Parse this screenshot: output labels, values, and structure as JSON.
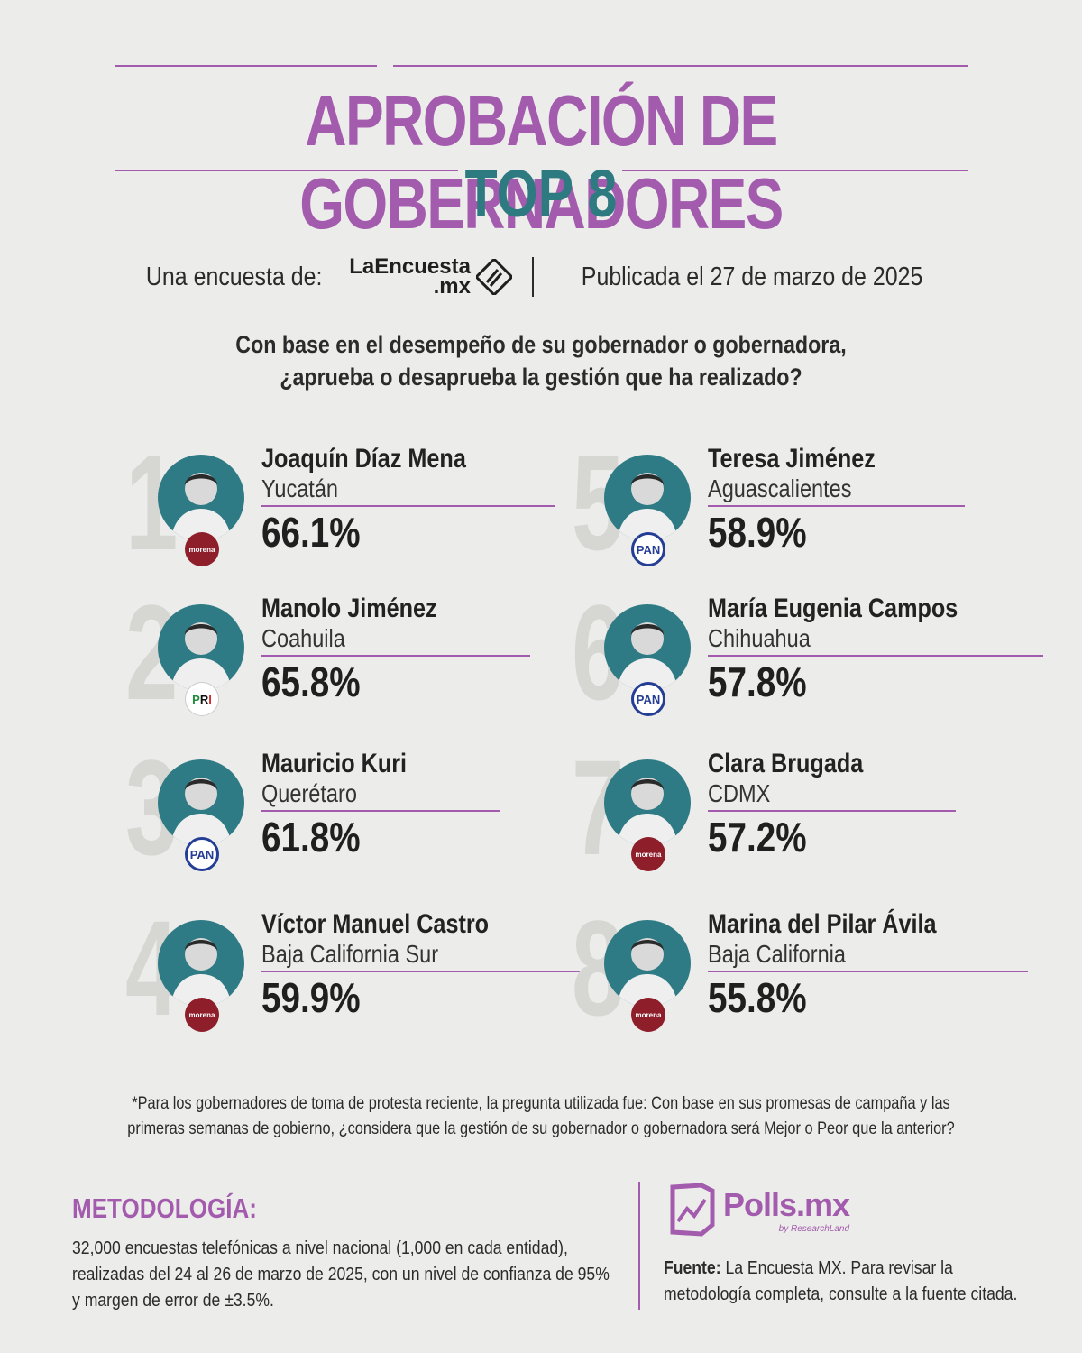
{
  "header": {
    "title": "APROBACIÓN DE GOBERNADORES",
    "subtitle": "TOP 8",
    "byline_prefix": "Una encuesta de:",
    "logo_name": "LaEncuesta",
    "logo_suffix": ".mx",
    "published": "Publicada el 27 de marzo de 2025"
  },
  "question": {
    "line1": "Con base en el desempeño de su gobernador o gobernadora,",
    "line2": "¿aprueba o desaprueba la gestión que ha realizado?"
  },
  "governors": [
    {
      "rank": "1",
      "name": "Joaquín Díaz Mena",
      "state": "Yucatán",
      "approval": "66.1%",
      "party": "morena"
    },
    {
      "rank": "2",
      "name": "Manolo Jiménez",
      "state": "Coahuila",
      "approval": "65.8%",
      "party": "PRI"
    },
    {
      "rank": "3",
      "name": "Mauricio Kuri",
      "state": "Querétaro",
      "approval": "61.8%",
      "party": "PAN"
    },
    {
      "rank": "4",
      "name": "Víctor Manuel Castro",
      "state": "Baja California Sur",
      "approval": "59.9%",
      "party": "morena"
    },
    {
      "rank": "5",
      "name": "Teresa Jiménez",
      "state": "Aguascalientes",
      "approval": "58.9%",
      "party": "PAN"
    },
    {
      "rank": "6",
      "name": "María Eugenia Campos",
      "state": "Chihuahua",
      "approval": "57.8%",
      "party": "PAN"
    },
    {
      "rank": "7",
      "name": "Clara Brugada",
      "state": "CDMX",
      "approval": "57.2%",
      "party": "morena"
    },
    {
      "rank": "8",
      "name": "Marina del Pilar Ávila",
      "state": "Baja California",
      "approval": "55.8%",
      "party": "morena"
    }
  ],
  "footnote": {
    "line1": "*Para los gobernadores de toma de protesta reciente, la pregunta utilizada fue: Con base en sus promesas de campaña y las",
    "line2": "primeras semanas de gobierno, ¿considera que la gestión de su gobernador o gobernadora será Mejor o Peor que la anterior?"
  },
  "methodology": {
    "title": "METODOLOGÍA:",
    "line1": "32,000 encuestas telefónicas a nivel nacional (1,000 en cada entidad),",
    "line2": "realizadas del 24 al 26 de marzo de 2025, con un nivel de confianza de 95%",
    "line3": "y margen de error de ±3.5%."
  },
  "brand": {
    "name": "Polls.mx",
    "sub": "by ResearchLand"
  },
  "source": {
    "label": "Fuente:",
    "line1": "La Encuesta MX. Para revisar la",
    "line2": "metodología completa, consulte a la fuente citada."
  },
  "colors": {
    "purple": "#a35bad",
    "teal": "#2d7a80",
    "morena": "#8d1e2a",
    "pan": "#243d95"
  }
}
